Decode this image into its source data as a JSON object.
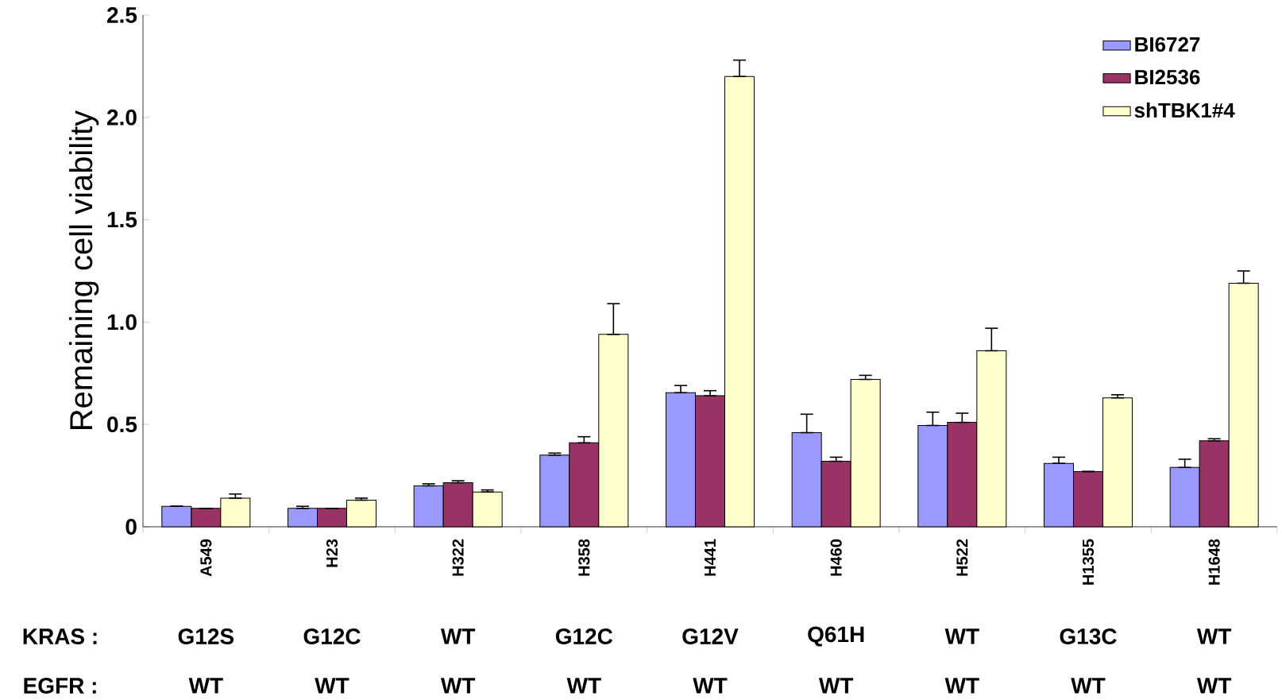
{
  "chart_data": {
    "type": "bar",
    "ylabel": "Remaining cell viability",
    "categories": [
      "A549",
      "H23",
      "H322",
      "H358",
      "H441",
      "H460",
      "H522",
      "H1355",
      "H1648"
    ],
    "series": [
      {
        "name": "BI6727",
        "color": "#9999ff",
        "values": [
          0.1,
          0.09,
          0.2,
          0.35,
          0.655,
          0.46,
          0.495,
          0.31,
          0.29
        ],
        "errors": [
          [
            0.1,
            0.1
          ],
          [
            0.09,
            0.1
          ],
          [
            0.2,
            0.21
          ],
          [
            0.35,
            0.36
          ],
          [
            0.655,
            0.69
          ],
          [
            0.46,
            0.55
          ],
          [
            0.495,
            0.56
          ],
          [
            0.31,
            0.34
          ],
          [
            0.29,
            0.33
          ]
        ]
      },
      {
        "name": "BI2536",
        "color": "#993366",
        "values": [
          0.09,
          0.09,
          0.215,
          0.41,
          0.64,
          0.32,
          0.51,
          0.27,
          0.42
        ],
        "errors": [
          [
            0.09,
            0.09
          ],
          [
            0.09,
            0.09
          ],
          [
            0.215,
            0.225
          ],
          [
            0.41,
            0.44
          ],
          [
            0.64,
            0.665
          ],
          [
            0.32,
            0.34
          ],
          [
            0.51,
            0.555
          ],
          [
            0.27,
            0.27
          ],
          [
            0.42,
            0.43
          ]
        ]
      },
      {
        "name": "shTBK1#4",
        "color": "#ffffcc",
        "values": [
          0.14,
          0.13,
          0.17,
          0.94,
          2.2,
          0.72,
          0.86,
          0.63,
          1.19
        ],
        "errors": [
          [
            0.14,
            0.16
          ],
          [
            0.13,
            0.14
          ],
          [
            0.17,
            0.18
          ],
          [
            0.94,
            1.09
          ],
          [
            2.2,
            2.28
          ],
          [
            0.72,
            0.74
          ],
          [
            0.86,
            0.97
          ],
          [
            0.63,
            0.645
          ],
          [
            1.19,
            1.25
          ]
        ]
      }
    ],
    "ylim": [
      0,
      2.5
    ],
    "yticks": [
      0,
      0.5,
      {
        "value": 1,
        "label": "1.0"
      },
      1.5,
      {
        "value": 2,
        "label": "2.0"
      },
      2.5
    ],
    "legend": "top right",
    "annotations": [
      "KRAS  :",
      "G12S",
      "G12C",
      "WT",
      "G12C",
      "G12V",
      "Q61H",
      "WT",
      "G13C",
      "WT",
      "EGFR  :",
      "WT",
      "WT",
      "WT",
      "WT",
      "WT",
      "WT",
      "WT",
      "WT",
      "WT"
    ]
  }
}
